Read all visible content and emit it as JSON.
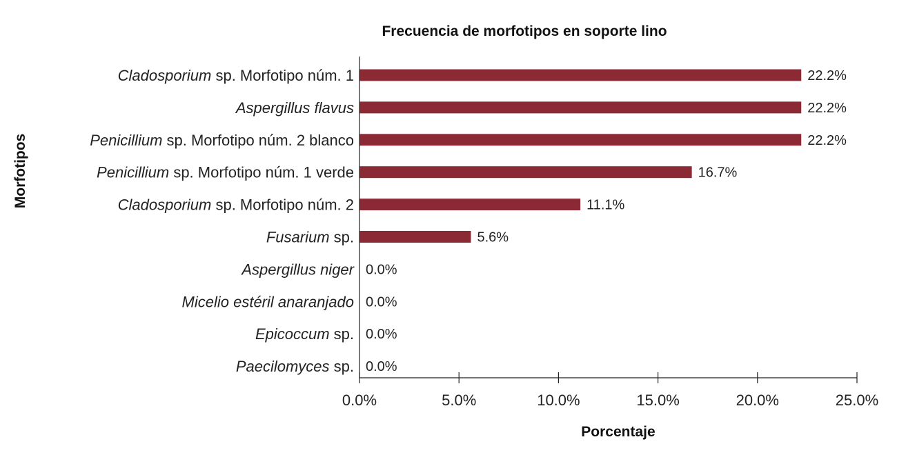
{
  "chart_data": {
    "type": "bar",
    "orientation": "horizontal",
    "title": "Frecuencia de morfotipos en soporte lino",
    "xlabel": "Porcentaje",
    "ylabel": "Morfotipos",
    "xlim": [
      0,
      25
    ],
    "x_ticks": [
      "0.0%",
      "5.0%",
      "10.0%",
      "15.0%",
      "20.0%",
      "25.0%"
    ],
    "grid": false,
    "bar_color": "#8b2a35",
    "categories": [
      {
        "italic": "Cladosporium",
        "rest": " sp. Morfotipo núm. 1"
      },
      {
        "italic": "Aspergillus flavus",
        "rest": ""
      },
      {
        "italic": "Penicillium",
        "rest": " sp. Morfotipo núm. 2 blanco"
      },
      {
        "italic": "Penicillium",
        "rest": " sp. Morfotipo núm. 1 verde"
      },
      {
        "italic": "Cladosporium",
        "rest": " sp. Morfotipo núm. 2"
      },
      {
        "italic": "Fusarium",
        "rest": " sp."
      },
      {
        "italic": "Aspergillus niger",
        "rest": ""
      },
      {
        "italic": "Micelio estéril anaranjado",
        "rest": ""
      },
      {
        "italic": "Epicoccum",
        "rest": " sp."
      },
      {
        "italic": "Paecilomyces",
        "rest": " sp."
      }
    ],
    "values": [
      22.2,
      22.2,
      22.2,
      16.7,
      11.1,
      5.6,
      0.0,
      0.0,
      0.0,
      0.0
    ],
    "data_labels": [
      "22.2%",
      "22.2%",
      "22.2%",
      "16.7%",
      "11.1%",
      "5.6%",
      "0.0%",
      "0.0%",
      "0.0%",
      "0.0%"
    ]
  }
}
